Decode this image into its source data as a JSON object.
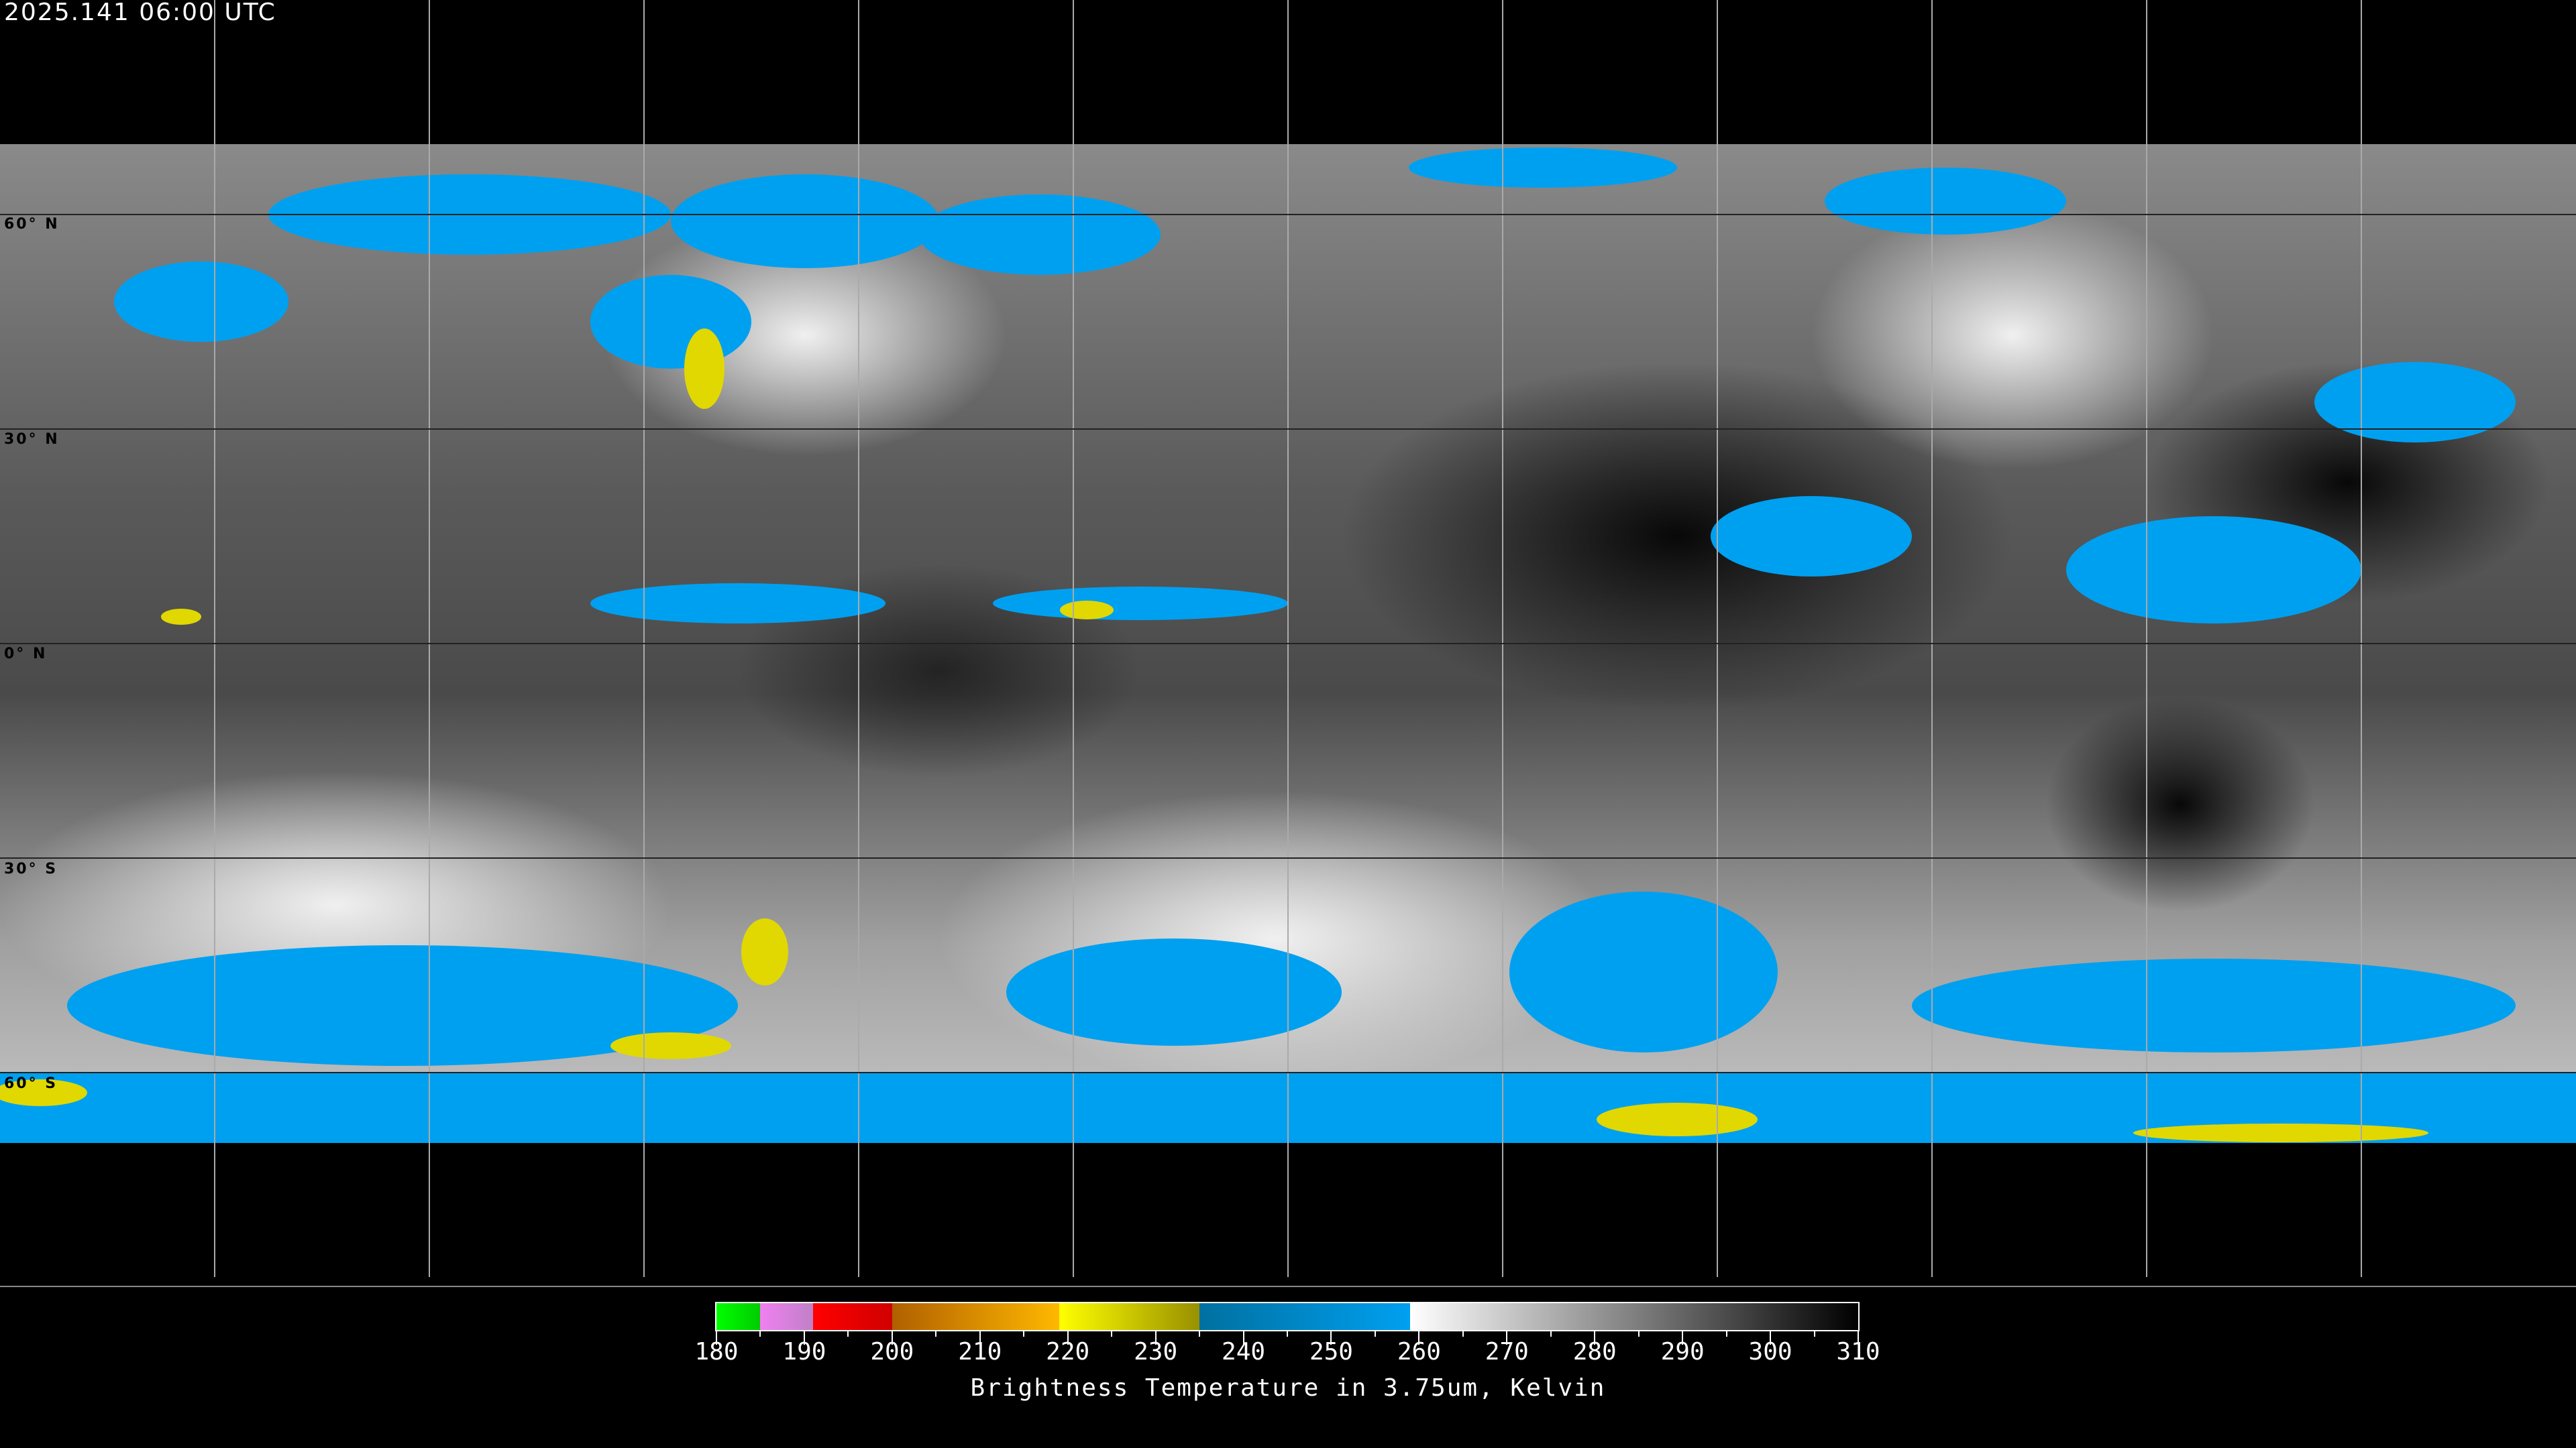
{
  "header": {
    "timestamp": "2025.141 06:00 UTC"
  },
  "map": {
    "projection": "equirectangular global",
    "lat_labels": [
      "60° N",
      "30° N",
      "0° N",
      "30° S",
      "60° S"
    ],
    "grid_spacing_degrees": 30
  },
  "colorbar": {
    "title": "Brightness Temperature in 3.75um, Kelvin",
    "min": 180,
    "max": 310,
    "tick_labels": [
      "180",
      "190",
      "200",
      "210",
      "220",
      "230",
      "240",
      "250",
      "260",
      "270",
      "280",
      "290",
      "300",
      "310"
    ],
    "segments": [
      {
        "from": 180,
        "to": 185,
        "start": "#00ff00",
        "end": "#00cc00"
      },
      {
        "from": 185,
        "to": 191,
        "start": "#f080f0",
        "end": "#c080c8"
      },
      {
        "from": 191,
        "to": 200,
        "start": "#ff0000",
        "end": "#d00000"
      },
      {
        "from": 200,
        "to": 219,
        "start": "#b06000",
        "end": "#ffb800"
      },
      {
        "from": 219,
        "to": 235,
        "start": "#ffff00",
        "end": "#989000"
      },
      {
        "from": 235,
        "to": 259,
        "start": "#0070a0",
        "end": "#00a0f0"
      },
      {
        "from": 259,
        "to": 310,
        "start": "#ffffff",
        "end": "#000000"
      }
    ]
  }
}
